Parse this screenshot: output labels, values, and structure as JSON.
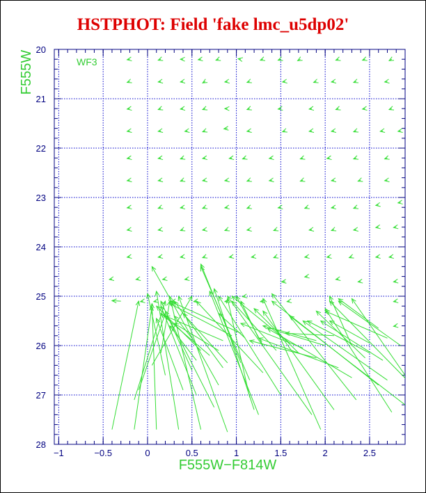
{
  "title": "HSTPHOT: Field 'fake lmc_u5dp02'",
  "colors": {
    "title": "#dd0000",
    "axis": "#000080",
    "grid": "#0000cc",
    "vectors": "#33dd33",
    "labels": "#33cc33"
  },
  "chart_data": {
    "type": "scatter",
    "title": "HSTPHOT: Field 'fake lmc_u5dp02'",
    "xlabel": "F555W−F814W",
    "ylabel": "F555W",
    "xlim": [
      -1.05,
      2.9
    ],
    "ylim": [
      28,
      20
    ],
    "y_inverted": true,
    "grid": true,
    "annotation": "WF3",
    "xticks": [
      -1,
      -0.5,
      0,
      0.5,
      1,
      1.5,
      2,
      2.5
    ],
    "xtick_labels": [
      "−1",
      "−0.5",
      "0",
      "0.5",
      "1",
      "1.5",
      "2",
      "2.5"
    ],
    "yticks": [
      20,
      21,
      22,
      23,
      24,
      25,
      26,
      27,
      28
    ],
    "ytick_labels": [
      "20",
      "21",
      "22",
      "23",
      "24",
      "25",
      "26",
      "27",
      "28"
    ],
    "mark": "vector from input (arrowhead) to recovered value",
    "vectors": [
      [
        -0.2,
        20.2,
        -0.23,
        20.21
      ],
      [
        0.15,
        20.2,
        0.12,
        20.22
      ],
      [
        0.4,
        20.2,
        0.37,
        20.2
      ],
      [
        0.6,
        20.2,
        0.57,
        20.21
      ],
      [
        0.8,
        20.2,
        0.77,
        20.22
      ],
      [
        1.05,
        20.2,
        1.02,
        20.19
      ],
      [
        1.3,
        20.2,
        1.27,
        20.22
      ],
      [
        1.5,
        20.2,
        1.47,
        20.22
      ],
      [
        1.72,
        20.2,
        1.69,
        20.23
      ],
      [
        2.15,
        20.2,
        2.12,
        20.22
      ],
      [
        2.45,
        20.2,
        2.42,
        20.22
      ],
      [
        2.75,
        20.2,
        2.72,
        20.23
      ],
      [
        -0.2,
        20.65,
        -0.23,
        20.67
      ],
      [
        0.15,
        20.65,
        0.12,
        20.66
      ],
      [
        0.4,
        20.65,
        0.37,
        20.66
      ],
      [
        0.65,
        20.65,
        0.62,
        20.68
      ],
      [
        0.9,
        20.65,
        0.87,
        20.66
      ],
      [
        1.15,
        20.65,
        1.12,
        20.67
      ],
      [
        1.55,
        20.65,
        1.52,
        20.66
      ],
      [
        1.9,
        20.65,
        1.87,
        20.67
      ],
      [
        2.1,
        20.65,
        2.07,
        20.66
      ],
      [
        2.35,
        20.65,
        2.32,
        20.67
      ],
      [
        2.7,
        20.65,
        2.67,
        20.66
      ],
      [
        -0.2,
        21.2,
        -0.23,
        21.21
      ],
      [
        0.15,
        21.2,
        0.12,
        21.22
      ],
      [
        0.4,
        21.2,
        0.37,
        21.21
      ],
      [
        0.65,
        21.2,
        0.62,
        21.22
      ],
      [
        0.9,
        21.2,
        0.87,
        21.2
      ],
      [
        1.15,
        21.2,
        1.12,
        21.22
      ],
      [
        1.5,
        21.2,
        1.47,
        21.21
      ],
      [
        1.85,
        21.2,
        1.82,
        21.21
      ],
      [
        2.15,
        21.2,
        2.12,
        21.22
      ],
      [
        2.45,
        21.2,
        2.42,
        21.21
      ],
      [
        2.75,
        21.2,
        2.72,
        21.22
      ],
      [
        -0.2,
        21.65,
        -0.23,
        21.66
      ],
      [
        0.15,
        21.65,
        0.12,
        21.66
      ],
      [
        0.45,
        21.65,
        0.42,
        21.66
      ],
      [
        0.65,
        21.65,
        0.62,
        21.67
      ],
      [
        0.9,
        21.6,
        0.86,
        21.61
      ],
      [
        1.15,
        21.65,
        1.12,
        21.66
      ],
      [
        1.55,
        21.65,
        1.52,
        21.67
      ],
      [
        1.85,
        21.65,
        1.82,
        21.66
      ],
      [
        2.1,
        21.65,
        2.07,
        21.66
      ],
      [
        2.35,
        21.65,
        2.32,
        21.67
      ],
      [
        2.65,
        21.65,
        2.62,
        21.66
      ],
      [
        2.85,
        21.65,
        2.82,
        21.66
      ],
      [
        -0.2,
        22.2,
        -0.23,
        22.21
      ],
      [
        0.15,
        22.2,
        0.12,
        22.21
      ],
      [
        0.4,
        22.2,
        0.37,
        22.22
      ],
      [
        0.65,
        22.2,
        0.62,
        22.21
      ],
      [
        0.95,
        22.2,
        0.92,
        22.21
      ],
      [
        1.1,
        22.2,
        1.07,
        22.22
      ],
      [
        1.4,
        22.2,
        1.37,
        22.21
      ],
      [
        1.75,
        22.2,
        1.72,
        22.22
      ],
      [
        2.05,
        22.2,
        2.02,
        22.21
      ],
      [
        2.35,
        22.2,
        2.32,
        22.22
      ],
      [
        2.7,
        22.2,
        2.67,
        22.22
      ],
      [
        -0.2,
        22.65,
        -0.23,
        22.66
      ],
      [
        0.15,
        22.65,
        0.12,
        22.66
      ],
      [
        0.4,
        22.65,
        0.37,
        22.67
      ],
      [
        0.65,
        22.65,
        0.62,
        22.66
      ],
      [
        0.9,
        22.65,
        0.87,
        22.66
      ],
      [
        1.15,
        22.65,
        1.12,
        22.67
      ],
      [
        1.4,
        22.65,
        1.37,
        22.66
      ],
      [
        1.75,
        22.65,
        1.72,
        22.67
      ],
      [
        2.1,
        22.65,
        2.07,
        22.66
      ],
      [
        2.4,
        22.65,
        2.37,
        22.67
      ],
      [
        2.7,
        22.65,
        2.67,
        22.66
      ],
      [
        -0.2,
        23.2,
        -0.23,
        23.21
      ],
      [
        0.15,
        23.2,
        0.12,
        23.22
      ],
      [
        0.4,
        23.2,
        0.37,
        23.21
      ],
      [
        0.65,
        23.2,
        0.62,
        23.22
      ],
      [
        0.9,
        23.2,
        0.87,
        23.21
      ],
      [
        1.15,
        23.2,
        1.12,
        23.22
      ],
      [
        1.5,
        23.2,
        1.47,
        23.21
      ],
      [
        1.8,
        23.2,
        1.77,
        23.22
      ],
      [
        2.1,
        23.2,
        2.07,
        23.21
      ],
      [
        2.35,
        23.2,
        2.32,
        23.22
      ],
      [
        2.6,
        23.15,
        2.57,
        23.16
      ],
      [
        2.85,
        23.1,
        2.82,
        23.11
      ],
      [
        -0.2,
        23.65,
        -0.23,
        23.66
      ],
      [
        0.15,
        23.65,
        0.12,
        23.66
      ],
      [
        0.4,
        23.65,
        0.37,
        23.67
      ],
      [
        0.65,
        23.65,
        0.62,
        23.66
      ],
      [
        0.9,
        23.65,
        0.87,
        23.67
      ],
      [
        1.15,
        23.65,
        1.12,
        23.66
      ],
      [
        1.45,
        23.65,
        1.42,
        23.67
      ],
      [
        1.85,
        23.65,
        1.82,
        23.66
      ],
      [
        2.1,
        23.65,
        2.07,
        23.67
      ],
      [
        2.35,
        23.65,
        2.32,
        23.66
      ],
      [
        2.6,
        23.6,
        2.57,
        23.61
      ],
      [
        2.8,
        23.6,
        2.77,
        23.61
      ],
      [
        -0.2,
        24.2,
        -0.23,
        24.21
      ],
      [
        0.15,
        24.2,
        0.12,
        24.21
      ],
      [
        0.4,
        24.2,
        0.37,
        24.21
      ],
      [
        0.65,
        24.2,
        0.62,
        24.22
      ],
      [
        0.95,
        24.2,
        0.92,
        24.21
      ],
      [
        1.2,
        24.2,
        1.17,
        24.21
      ],
      [
        1.45,
        24.2,
        1.42,
        24.22
      ],
      [
        1.8,
        24.2,
        1.77,
        24.21
      ],
      [
        2.05,
        24.2,
        2.02,
        24.21
      ],
      [
        2.3,
        24.2,
        2.27,
        24.22
      ],
      [
        2.6,
        24.2,
        2.57,
        24.21
      ],
      [
        2.75,
        24.2,
        2.72,
        24.21
      ],
      [
        -0.4,
        24.65,
        -0.43,
        24.66
      ],
      [
        -0.1,
        24.65,
        -0.13,
        24.66
      ],
      [
        0.2,
        24.65,
        0.17,
        24.66
      ],
      [
        0.45,
        24.65,
        0.42,
        24.66
      ],
      [
        1.55,
        24.7,
        1.51,
        24.71
      ],
      [
        1.8,
        24.6,
        1.77,
        24.61
      ],
      [
        2.15,
        24.65,
        2.12,
        24.66
      ],
      [
        2.4,
        24.7,
        2.37,
        24.71
      ],
      [
        2.8,
        24.7,
        2.77,
        24.71
      ],
      [
        -0.3,
        25.1,
        -0.4,
        25.09
      ],
      [
        -0.05,
        25.1,
        -0.08,
        25.11
      ],
      [
        0.1,
        25.1,
        0.07,
        25.11
      ],
      [
        0.3,
        25.1,
        0.27,
        25.11
      ],
      [
        0.55,
        25.1,
        0.52,
        25.11
      ],
      [
        0.9,
        25.1,
        0.87,
        25.11
      ],
      [
        1.1,
        25.0,
        1.07,
        25.01
      ],
      [
        1.3,
        25.1,
        1.27,
        25.11
      ],
      [
        1.6,
        25.1,
        1.57,
        25.11
      ],
      [
        2.8,
        25.1,
        2.77,
        25.11
      ],
      [
        2.8,
        25.6,
        2.77,
        25.61
      ],
      [
        -0.4,
        27.7,
        -0.1,
        25.1
      ],
      [
        -0.15,
        27.7,
        0.05,
        25.2
      ],
      [
        0.1,
        27.7,
        0.05,
        25.15
      ],
      [
        0.35,
        27.7,
        0.1,
        24.9
      ],
      [
        -0.15,
        27.1,
        0.2,
        25.1
      ],
      [
        -0.1,
        26.9,
        0.2,
        25.35
      ],
      [
        0.05,
        26.4,
        0.5,
        25.0
      ],
      [
        0.15,
        26.15,
        0.25,
        25.1
      ],
      [
        0.2,
        26.6,
        0.0,
        24.95
      ],
      [
        0.6,
        27.7,
        0.25,
        25.0
      ],
      [
        0.9,
        27.75,
        0.35,
        25.0
      ],
      [
        0.75,
        27.25,
        0.2,
        25.3
      ],
      [
        0.55,
        27.0,
        0.15,
        25.2
      ],
      [
        0.4,
        26.9,
        0.1,
        25.45
      ],
      [
        0.8,
        26.8,
        0.05,
        24.4
      ],
      [
        0.5,
        26.5,
        0.15,
        25.1
      ],
      [
        0.85,
        26.45,
        0.3,
        25.1
      ],
      [
        0.7,
        26.2,
        0.15,
        25.35
      ],
      [
        0.6,
        26.1,
        0.1,
        25.2
      ],
      [
        0.95,
        25.8,
        0.25,
        25.15
      ],
      [
        1.05,
        26.35,
        0.6,
        24.35
      ],
      [
        1.15,
        26.7,
        0.6,
        24.4
      ],
      [
        1.2,
        27.3,
        0.75,
        24.85
      ],
      [
        1.25,
        27.4,
        0.7,
        24.9
      ],
      [
        1.15,
        27.05,
        0.9,
        25.05
      ],
      [
        1.3,
        26.55,
        0.55,
        25.1
      ],
      [
        1.5,
        27.0,
        0.8,
        25.0
      ],
      [
        1.85,
        27.4,
        0.9,
        25.0
      ],
      [
        1.95,
        27.7,
        1.3,
        25.05
      ],
      [
        2.1,
        27.3,
        1.3,
        25.3
      ],
      [
        2.35,
        27.1,
        1.4,
        24.95
      ],
      [
        2.6,
        26.8,
        1.4,
        25.1
      ],
      [
        2.9,
        27.2,
        1.6,
        25.4
      ],
      [
        2.7,
        26.7,
        1.75,
        25.5
      ],
      [
        2.65,
        26.3,
        1.95,
        25.5
      ],
      [
        2.45,
        26.25,
        1.9,
        25.3
      ],
      [
        2.3,
        26.0,
        2.05,
        25.0
      ],
      [
        2.75,
        27.35,
        2.0,
        25.25
      ],
      [
        2.95,
        26.75,
        2.05,
        25.1
      ],
      [
        2.85,
        26.0,
        2.15,
        25.1
      ],
      [
        2.7,
        25.85,
        2.0,
        25.3
      ],
      [
        2.6,
        25.65,
        2.15,
        25.05
      ],
      [
        2.5,
        25.95,
        2.05,
        25.5
      ],
      [
        2.9,
        26.6,
        2.3,
        25.05
      ],
      [
        2.3,
        26.65,
        1.35,
        25.65
      ],
      [
        2.15,
        26.45,
        1.25,
        25.85
      ],
      [
        1.9,
        26.25,
        1.15,
        25.9
      ],
      [
        2.0,
        26.0,
        1.45,
        25.7
      ],
      [
        1.75,
        26.05,
        1.05,
        25.55
      ],
      [
        1.6,
        25.95,
        0.95,
        25.0
      ],
      [
        1.45,
        26.1,
        0.95,
        25.1
      ],
      [
        1.3,
        26.0,
        1.0,
        25.0
      ],
      [
        1.25,
        25.85,
        1.05,
        25.1
      ],
      [
        1.1,
        25.85,
        0.8,
        25.35
      ],
      [
        1.05,
        25.75,
        0.25,
        25.1
      ],
      [
        0.85,
        25.9,
        0.2,
        25.4
      ],
      [
        0.9,
        26.35,
        0.4,
        25.35
      ],
      [
        0.5,
        25.85,
        0.3,
        25.4
      ],
      [
        0.8,
        26.1,
        0.3,
        25.55
      ],
      [
        0.55,
        26.3,
        0.25,
        25.6
      ],
      [
        1.7,
        26.15,
        1.2,
        25.25
      ],
      [
        2.1,
        25.8,
        1.55,
        25.75
      ],
      [
        2.5,
        26.15,
        1.8,
        25.5
      ],
      [
        1.9,
        25.9,
        1.3,
        25.6
      ]
    ]
  }
}
